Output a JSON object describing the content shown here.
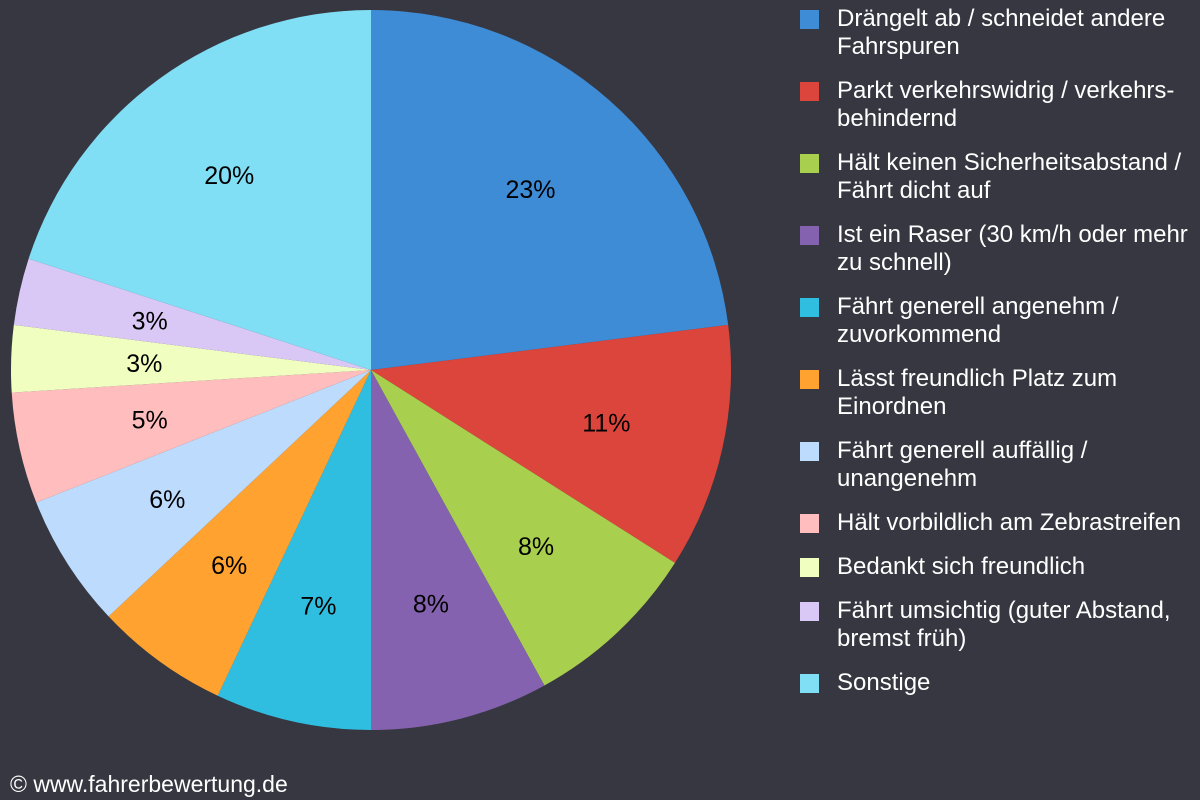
{
  "chart_data": {
    "type": "pie",
    "start": "top",
    "direction": "clockwise",
    "slices": [
      {
        "label": "Drängelt ab / schneidet andere Fahrspuren",
        "value": 23,
        "value_label": "23%",
        "color": "#3e8bd6"
      },
      {
        "label": "Parkt verkehrswidrig / verkehrs-behindernd",
        "value": 11,
        "value_label": "11%",
        "color": "#dc453b"
      },
      {
        "label": "Hält keinen Sicherheitsabstand / Fährt dicht auf",
        "value": 8,
        "value_label": "8%",
        "color": "#a8cf4e"
      },
      {
        "label": "Ist ein Raser (30 km/h oder mehr zu schnell)",
        "value": 8,
        "value_label": "8%",
        "color": "#8562b0"
      },
      {
        "label": "Fährt generell angenehm / zuvorkommend",
        "value": 7,
        "value_label": "7%",
        "color": "#30bee0"
      },
      {
        "label": "Lässt freundlich Platz zum Einordnen",
        "value": 6,
        "value_label": "6%",
        "color": "#ffa230"
      },
      {
        "label": "Fährt generell auffällig / unangenehm",
        "value": 6,
        "value_label": "6%",
        "color": "#bddcfd"
      },
      {
        "label": "Hält vorbildlich am Zebrastreifen",
        "value": 5,
        "value_label": "5%",
        "color": "#ffbdbd"
      },
      {
        "label": "Bedankt sich freundlich",
        "value": 3,
        "value_label": "3%",
        "color": "#f0ffc0"
      },
      {
        "label": "Fährt umsichtig (guter Abstand, bremst früh)",
        "value": 3,
        "value_label": "3%",
        "color": "#d9c8f5"
      },
      {
        "label": "Sonstige",
        "value": 20,
        "value_label": "20%",
        "color": "#80def5"
      }
    ],
    "legend_position": "right"
  },
  "footer": "© www.fahrerbewertung.de",
  "colors": {
    "background": "#363740",
    "text": "#ffffff",
    "slice_label": "#000000"
  }
}
